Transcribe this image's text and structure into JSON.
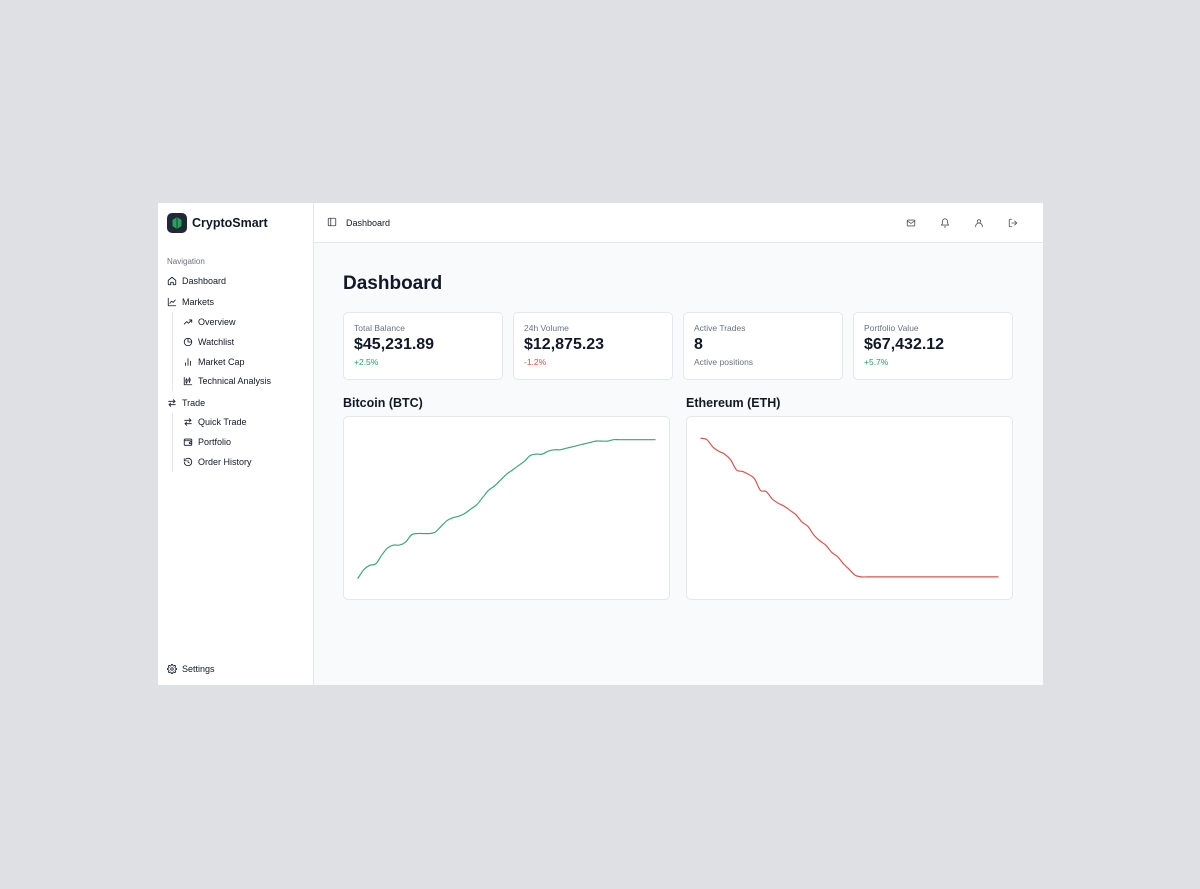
{
  "app": {
    "name": "CryptoSmart",
    "colors": {
      "accent": "#1f2937",
      "logo_leaf": "#22a559",
      "positive": "#22a559",
      "negative": "#dc4c3c"
    }
  },
  "sidebar": {
    "caption": "Navigation",
    "items": [
      {
        "label": "Dashboard",
        "icon": "home-icon"
      },
      {
        "label": "Markets",
        "icon": "line-chart-icon",
        "children": [
          {
            "label": "Overview",
            "icon": "trending-up-icon"
          },
          {
            "label": "Watchlist",
            "icon": "pie-chart-icon"
          },
          {
            "label": "Market Cap",
            "icon": "bar-chart-icon"
          },
          {
            "label": "Technical Analysis",
            "icon": "candlestick-chart-icon"
          }
        ]
      },
      {
        "label": "Trade",
        "icon": "arrows-exchange-icon",
        "children": [
          {
            "label": "Quick Trade",
            "icon": "arrows-exchange-icon"
          },
          {
            "label": "Portfolio",
            "icon": "wallet-icon"
          },
          {
            "label": "Order History",
            "icon": "history-icon"
          }
        ]
      }
    ],
    "settings_label": "Settings"
  },
  "header": {
    "breadcrumb": "Dashboard",
    "icons": [
      "mail-icon",
      "bell-icon",
      "user-icon",
      "logout-icon"
    ]
  },
  "main": {
    "title": "Dashboard",
    "stats": [
      {
        "label": "Total Balance",
        "value": "$45,231.89",
        "sub": "+2.5%",
        "tone": "pos"
      },
      {
        "label": "24h Volume",
        "value": "$12,875.23",
        "sub": "-1.2%",
        "tone": "neg"
      },
      {
        "label": "Active Trades",
        "value": "8",
        "sub": "Active positions",
        "tone": "muted"
      },
      {
        "label": "Portfolio Value",
        "value": "$67,432.12",
        "sub": "+5.7%",
        "tone": "pos"
      }
    ]
  },
  "chart_data": [
    {
      "type": "line",
      "title": "Bitcoin (BTC)",
      "color": "#3aa876",
      "grid": false,
      "x": [
        0,
        1,
        2,
        3,
        4,
        5,
        6,
        7,
        8,
        9,
        10,
        11,
        12,
        13,
        14,
        15,
        16,
        17,
        18,
        19,
        20,
        21,
        22,
        23,
        24,
        25,
        26,
        27,
        28,
        29,
        30,
        31,
        32,
        33,
        34,
        35,
        36,
        37,
        38,
        39,
        40,
        41,
        42,
        43,
        44,
        45,
        46,
        47,
        48,
        49,
        50
      ],
      "values": [
        2,
        8,
        11,
        12,
        18,
        23,
        25,
        25,
        27,
        32,
        33,
        33,
        33,
        34,
        38,
        42,
        44,
        45,
        47,
        50,
        53,
        58,
        63,
        66,
        70,
        74,
        77,
        80,
        83,
        87,
        88,
        88,
        90,
        91,
        91,
        92,
        93,
        94,
        95,
        96,
        97,
        97,
        97,
        98,
        98,
        98,
        98,
        98,
        98,
        98,
        98
      ],
      "ylim": [
        0,
        100
      ]
    },
    {
      "type": "line",
      "title": "Ethereum (ETH)",
      "color": "#d9534f",
      "grid": false,
      "x": [
        0,
        1,
        2,
        3,
        4,
        5,
        6,
        7,
        8,
        9,
        10,
        11,
        12,
        13,
        14,
        15,
        16,
        17,
        18,
        19,
        20,
        21,
        22,
        23,
        24,
        25,
        26,
        27,
        28,
        29,
        30,
        31,
        32,
        33,
        34,
        35,
        36,
        37,
        38,
        39,
        40,
        41,
        42,
        43,
        44,
        45,
        46,
        47,
        48,
        49,
        50
      ],
      "values": [
        99,
        98,
        93,
        90,
        88,
        84,
        77,
        76,
        74,
        71,
        63,
        62,
        57,
        54,
        52,
        49,
        46,
        41,
        38,
        32,
        28,
        25,
        20,
        17,
        12,
        8,
        4,
        3,
        3,
        3,
        3,
        3,
        3,
        3,
        3,
        3,
        3,
        3,
        3,
        3,
        3,
        3,
        3,
        3,
        3,
        3,
        3,
        3,
        3,
        3,
        3
      ],
      "ylim": [
        0,
        100
      ]
    }
  ]
}
